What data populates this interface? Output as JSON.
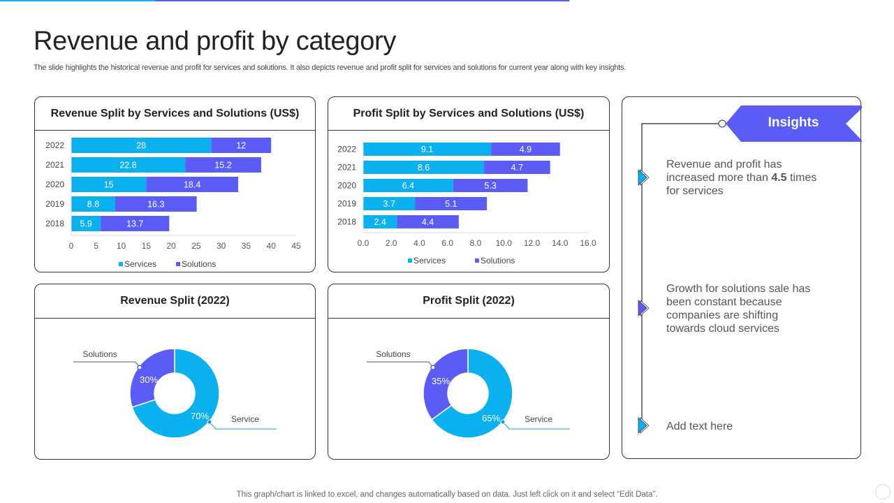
{
  "header": {
    "title": "Revenue and profit by category",
    "subtitle": "The slide highlights the historical revenue and profit for services and solutions. It also depicts revenue and profit split for services and solutions for current year along with key insights."
  },
  "colors": {
    "services": "#0bb0ee",
    "solutions": "#5b5bf5",
    "accent_blue": "#16b4ea",
    "accent_purple": "#5b5be8"
  },
  "chart_data": [
    {
      "type": "bar",
      "orientation": "horizontal-stacked",
      "title": "Revenue Split by Services and Solutions (US$)",
      "categories": [
        "2022",
        "2021",
        "2020",
        "2019",
        "2018"
      ],
      "series": [
        {
          "name": "Services",
          "values": [
            28,
            22.8,
            15,
            8.8,
            5.9
          ]
        },
        {
          "name": "Solutions",
          "values": [
            12,
            15.2,
            18.4,
            16.3,
            13.7
          ]
        }
      ],
      "xlim": [
        0,
        45
      ],
      "xticks": [
        "0",
        "5",
        "10",
        "15",
        "20",
        "25",
        "30",
        "35",
        "40",
        "45"
      ],
      "legend": "bottom"
    },
    {
      "type": "bar",
      "orientation": "horizontal-stacked",
      "title": "Profit Split by Services and Solutions (US$)",
      "categories": [
        "2022",
        "2021",
        "2020",
        "2019",
        "2018"
      ],
      "series": [
        {
          "name": "Services",
          "values": [
            9.1,
            8.6,
            6.4,
            3.7,
            2.4
          ]
        },
        {
          "name": "Solutions",
          "values": [
            4.9,
            4.7,
            5.3,
            5.1,
            4.4
          ]
        }
      ],
      "xlim": [
        0,
        16
      ],
      "xticks": [
        "0.0",
        "2.0",
        "4.0",
        "6.0",
        "8.0",
        "10.0",
        "12.0",
        "14.0",
        "16.0"
      ],
      "legend": "bottom"
    },
    {
      "type": "pie",
      "variant": "donut",
      "title": "Revenue Split (2022)",
      "slices": [
        {
          "name": "Service",
          "value": 70,
          "label": "70%"
        },
        {
          "name": "Solutions",
          "value": 30,
          "label": "30%"
        }
      ]
    },
    {
      "type": "pie",
      "variant": "donut",
      "title": "Profit Split (2022)",
      "slices": [
        {
          "name": "Service",
          "value": 65,
          "label": "65%"
        },
        {
          "name": "Solutions",
          "value": 35,
          "label": "35%"
        }
      ]
    }
  ],
  "insights": {
    "badge": "Insights",
    "items": [
      {
        "text_before": "Revenue  and profit has increased more than ",
        "bold": "4.5",
        "text_after": " times for services",
        "marker": "blue"
      },
      {
        "text_before": "Growth for solutions sale has been constant  because companies are shifting towards cloud services",
        "bold": "",
        "text_after": "",
        "marker": "purple"
      },
      {
        "text_before": "Add text here",
        "bold": "",
        "text_after": "",
        "marker": "blue"
      }
    ]
  },
  "footer": {
    "note": "This graph/chart is linked to excel,  and changes automatically based on data. Just left click on it and select “Edit Data”."
  }
}
